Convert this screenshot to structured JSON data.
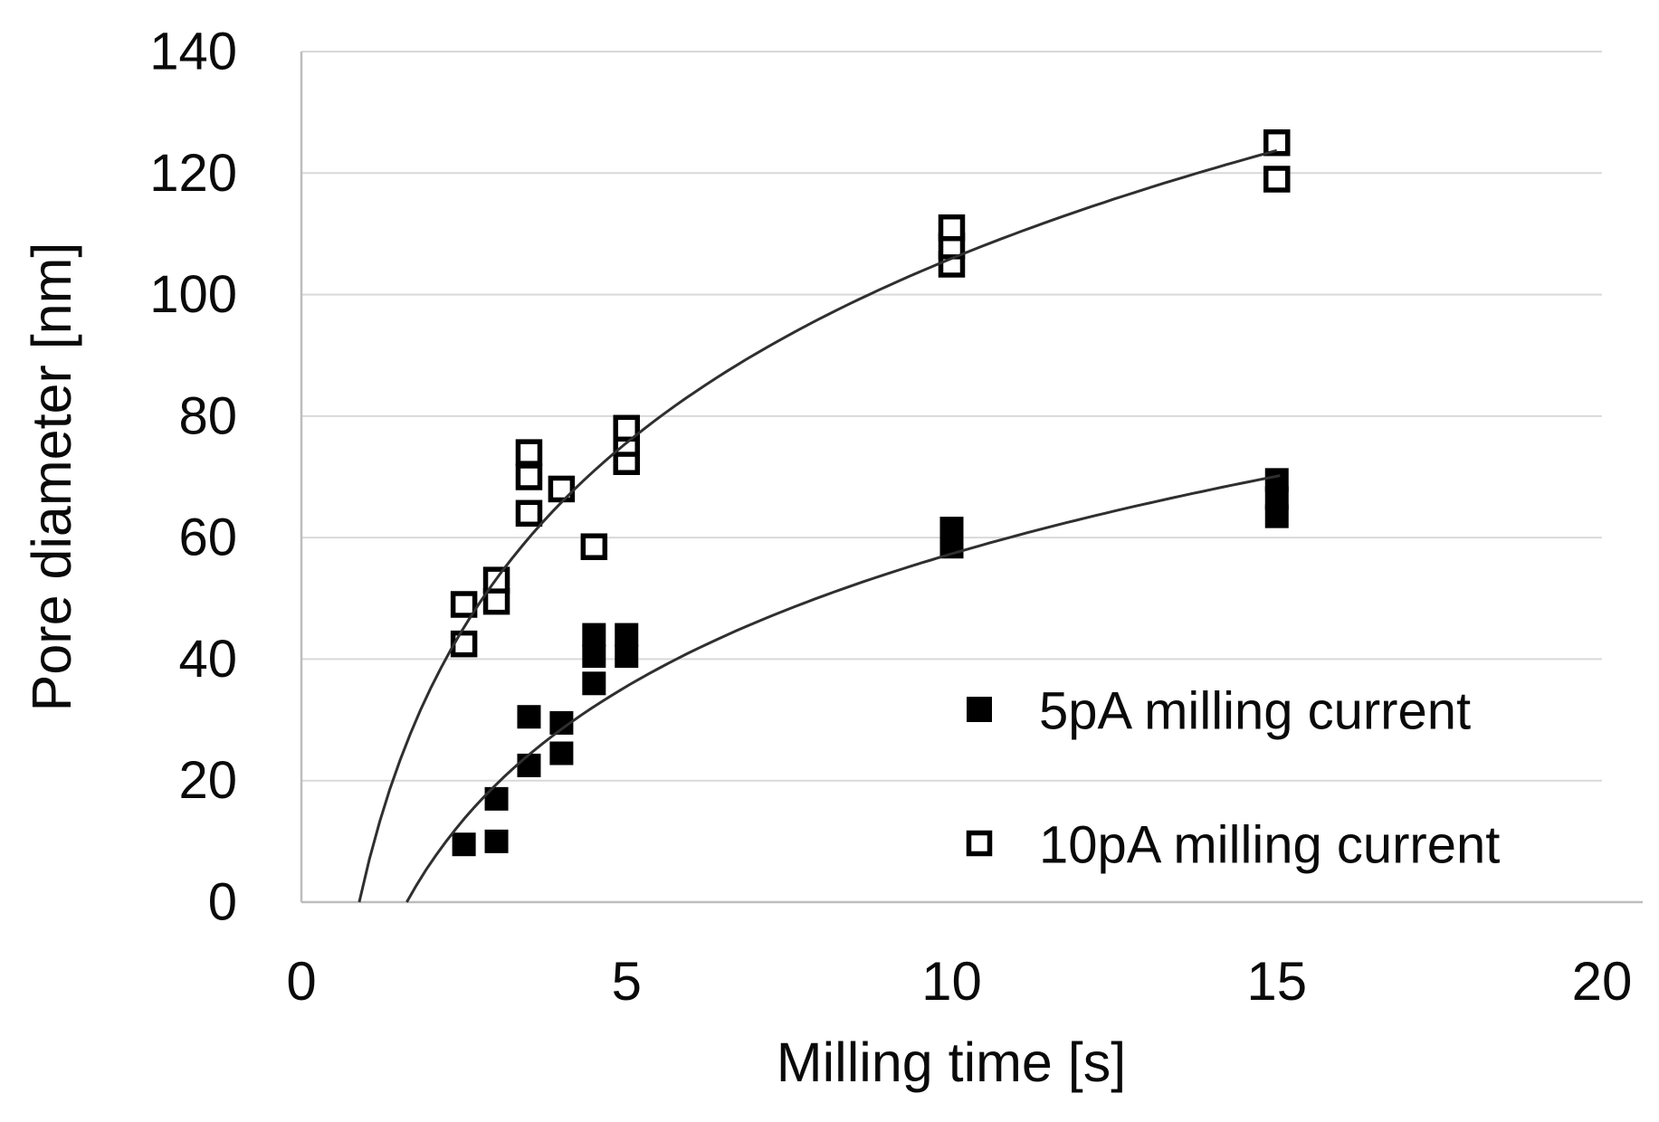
{
  "chart_data": {
    "type": "scatter",
    "title": "",
    "xlabel": "Milling time [s]",
    "ylabel": "Pore diameter [nm]",
    "xlim": [
      0,
      20
    ],
    "ylim": [
      0,
      140
    ],
    "x_ticks": [
      0,
      5,
      10,
      15,
      20
    ],
    "y_ticks": [
      0,
      20,
      40,
      60,
      80,
      100,
      120,
      140
    ],
    "grid": "horizontal-only",
    "legend": {
      "position": "inside-right",
      "entries": [
        "5pA milling current",
        "10pA milling current"
      ]
    },
    "series": [
      {
        "name": "5pA milling current",
        "marker": "filled-square",
        "points": [
          [
            2.5,
            9.5
          ],
          [
            3,
            10
          ],
          [
            3,
            17
          ],
          [
            3.5,
            22.5
          ],
          [
            3.5,
            30.5
          ],
          [
            4,
            24.5
          ],
          [
            4,
            29.5
          ],
          [
            4.5,
            36
          ],
          [
            4.5,
            40.5
          ],
          [
            4.5,
            44
          ],
          [
            5,
            40.5
          ],
          [
            5,
            44
          ],
          [
            10,
            58.5
          ],
          [
            10,
            61.5
          ],
          [
            15,
            63.5
          ],
          [
            15,
            66.5
          ],
          [
            15,
            69.5
          ]
        ],
        "trend": {
          "type": "logarithmic",
          "a": 31.5,
          "t0": 1.62,
          "t_end": 15.05
        }
      },
      {
        "name": "10pA milling current",
        "marker": "open-square",
        "points": [
          [
            2.5,
            42.5
          ],
          [
            2.5,
            49
          ],
          [
            3,
            49.5
          ],
          [
            3,
            53
          ],
          [
            3.5,
            64
          ],
          [
            3.5,
            70
          ],
          [
            3.5,
            74
          ],
          [
            4,
            68
          ],
          [
            4.5,
            58.5
          ],
          [
            5,
            72.5
          ],
          [
            5,
            75.5
          ],
          [
            5,
            78
          ],
          [
            10,
            105
          ],
          [
            10,
            108
          ],
          [
            10,
            111
          ],
          [
            15,
            119
          ],
          [
            15,
            125
          ]
        ],
        "trend": {
          "type": "logarithmic",
          "a": 43.8,
          "t0": 0.89,
          "t_end": 15.0
        }
      }
    ],
    "colors": {
      "background": "#ffffff",
      "grid": "#d9d9d9",
      "axis": "#bdbdbd",
      "curve": "#2f2f2f",
      "marker": "#000000",
      "text": "#0a0a0a"
    }
  }
}
